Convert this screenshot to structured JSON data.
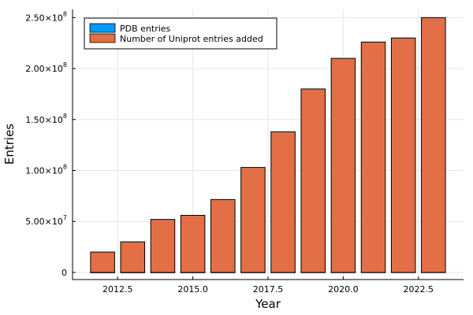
{
  "chart_data": {
    "type": "bar",
    "title": "",
    "xlabel": "Year",
    "ylabel": "Entries",
    "xlim": [
      2011,
      2024
    ],
    "ylim": [
      -7000000,
      258000000
    ],
    "x_ticks": [
      2012.5,
      2015.0,
      2017.5,
      2020.0,
      2022.5
    ],
    "x_tick_labels": [
      "2012.5",
      "2015.0",
      "2017.5",
      "2020.0",
      "2022.5"
    ],
    "y_ticks": [
      0,
      50000000,
      100000000,
      150000000,
      200000000,
      250000000
    ],
    "y_tick_mantissas": [
      "0",
      "5.00×10",
      "1.00×10",
      "1.50×10",
      "2.00×10",
      "2.50×10"
    ],
    "y_tick_exponents": [
      "",
      "7",
      "8",
      "8",
      "8",
      "8"
    ],
    "grid": true,
    "legend_position": "top-left",
    "bar_width": 0.8,
    "series": [
      {
        "name": "PDB entries",
        "color": "#009AFA",
        "x": [
          2012,
          2013,
          2014,
          2015,
          2016,
          2017,
          2018,
          2019,
          2020,
          2021,
          2022,
          2023
        ],
        "values": [
          80000,
          90000,
          100000,
          110000,
          120000,
          130000,
          145000,
          155000,
          170000,
          180000,
          195000,
          210000
        ]
      },
      {
        "name": "Number of Uniprot entries added",
        "color": "#E26F46",
        "x": [
          2012,
          2013,
          2014,
          2015,
          2016,
          2017,
          2018,
          2019,
          2020,
          2021,
          2022,
          2023
        ],
        "values": [
          20000000,
          30000000,
          52000000,
          56000000,
          71500000,
          103000000,
          138000000,
          180000000,
          210000000,
          226000000,
          230000000,
          250000000
        ]
      }
    ]
  }
}
